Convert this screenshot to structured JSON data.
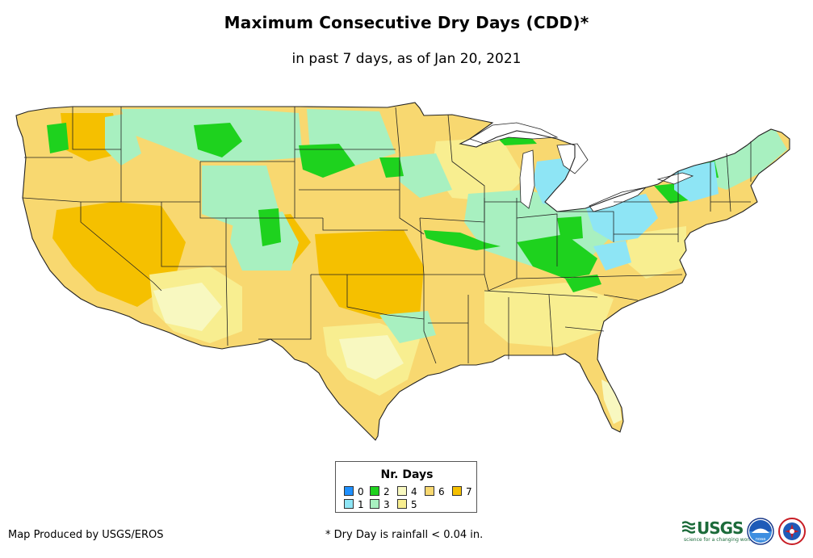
{
  "title": "Maximum Consecutive Dry Days (CDD)*",
  "subtitle": "in past 7 days, as of Jan 20, 2021",
  "legend": {
    "title": "Nr. Days",
    "items": [
      {
        "label": "0",
        "color": "#1e90ff"
      },
      {
        "label": "1",
        "color": "#8ee5f5"
      },
      {
        "label": "2",
        "color": "#1ed21e"
      },
      {
        "label": "3",
        "color": "#a8f0c0"
      },
      {
        "label": "4",
        "color": "#f8f8c0"
      },
      {
        "label": "5",
        "color": "#f8ee90"
      },
      {
        "label": "6",
        "color": "#f8d870"
      },
      {
        "label": "7",
        "color": "#f5c000"
      }
    ]
  },
  "credit": "Map Produced by USGS/EROS",
  "footnote": "* Dry Day is rainfall < 0.04 in.",
  "logos": {
    "usgs_word": "USGS",
    "usgs_tagline": "science for a changing world",
    "noaa_word": "noaa"
  },
  "colors": {
    "border": "#222222",
    "background": "#ffffff"
  }
}
